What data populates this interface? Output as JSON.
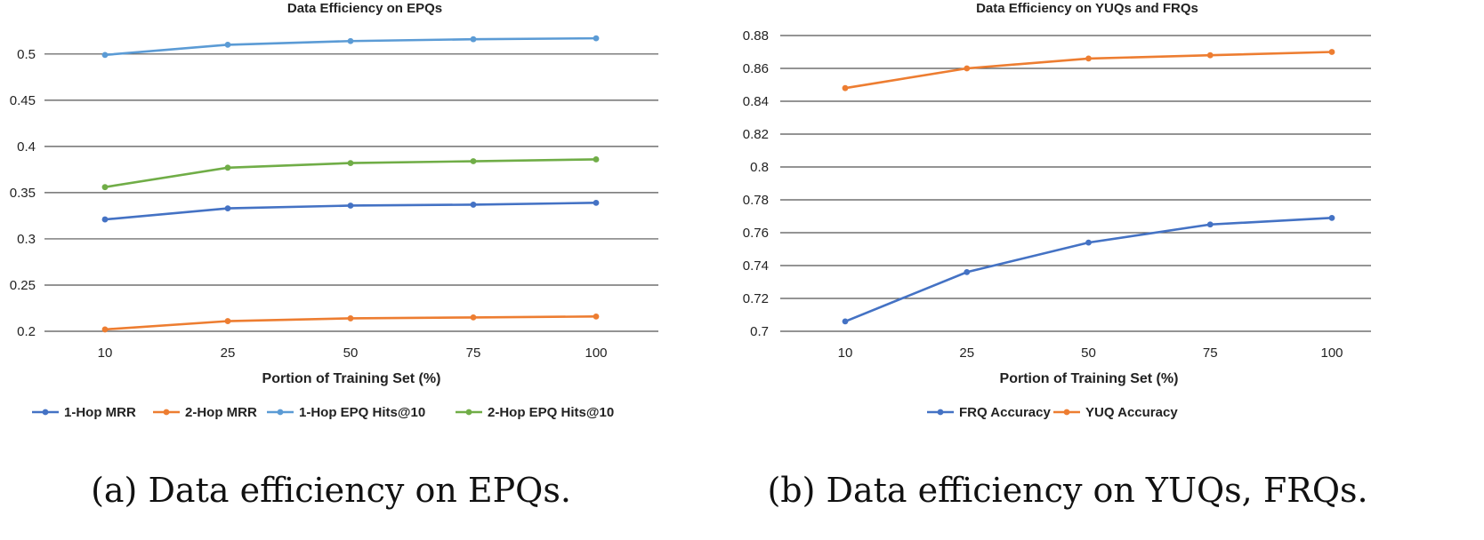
{
  "chart_data": [
    {
      "type": "line",
      "title": "Data Efficiency on EPQs",
      "xlabel": "Portion of Training Set (%)",
      "ylabel": "",
      "categories": [
        "10",
        "25",
        "50",
        "75",
        "100"
      ],
      "yticks": [
        "0.2",
        "0.25",
        "0.3",
        "0.35",
        "0.4",
        "0.45",
        "0.5"
      ],
      "ylim": [
        0.2,
        0.52
      ],
      "grid": true,
      "legend_position": "bottom",
      "caption": "(a) Data efficiency on EPQs.",
      "series": [
        {
          "name": "1-Hop MRR",
          "color": "#4472C4",
          "values": [
            0.321,
            0.333,
            0.336,
            0.337,
            0.339
          ]
        },
        {
          "name": "2-Hop MRR",
          "color": "#ED7D31",
          "values": [
            0.202,
            0.211,
            0.214,
            0.215,
            0.216
          ]
        },
        {
          "name": "1-Hop EPQ Hits@10",
          "color": "#5B9BD5",
          "values": [
            0.499,
            0.51,
            0.514,
            0.516,
            0.517
          ]
        },
        {
          "name": "2-Hop EPQ Hits@10",
          "color": "#70AD47",
          "values": [
            0.356,
            0.377,
            0.382,
            0.384,
            0.386
          ]
        }
      ]
    },
    {
      "type": "line",
      "title": "Data Efficiency on YUQs and FRQs",
      "xlabel": "Portion of Training Set (%)",
      "ylabel": "",
      "categories": [
        "10",
        "25",
        "50",
        "75",
        "100"
      ],
      "yticks": [
        "0.7",
        "0.72",
        "0.74",
        "0.76",
        "0.78",
        "0.8",
        "0.82",
        "0.84",
        "0.86",
        "0.88"
      ],
      "ylim": [
        0.7,
        0.88
      ],
      "grid": true,
      "legend_position": "bottom",
      "caption": "(b) Data efficiency on YUQs, FRQs.",
      "series": [
        {
          "name": "FRQ Accuracy",
          "color": "#4472C4",
          "values": [
            0.706,
            0.736,
            0.754,
            0.765,
            0.769
          ]
        },
        {
          "name": "YUQ Accuracy",
          "color": "#ED7D31",
          "values": [
            0.848,
            0.86,
            0.866,
            0.868,
            0.87
          ]
        }
      ]
    }
  ]
}
